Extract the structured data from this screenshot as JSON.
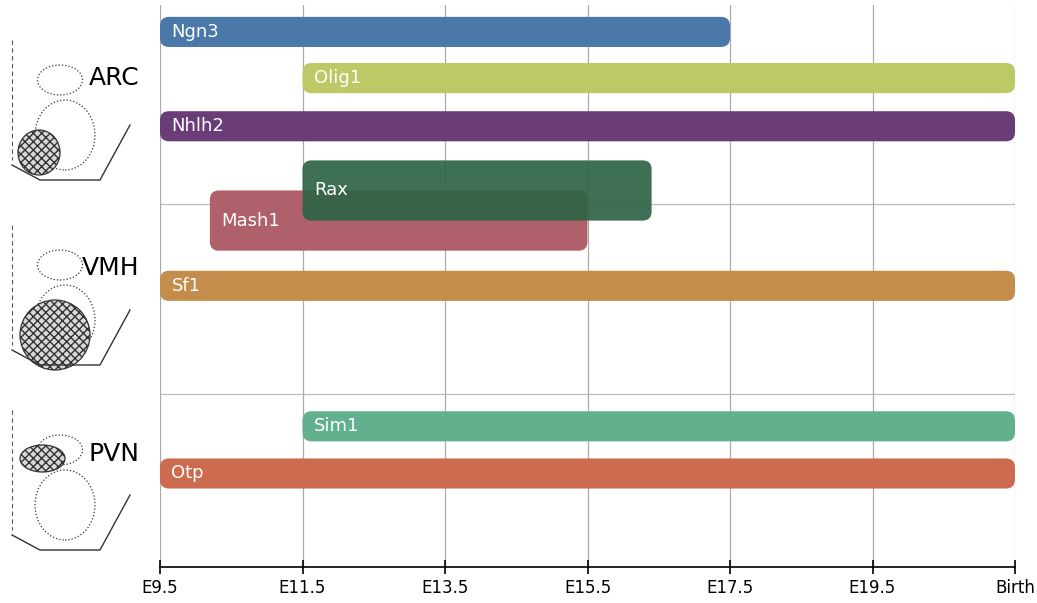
{
  "chart_data": {
    "type": "gantt",
    "groups": [
      "ARC",
      "VMH",
      "PVN"
    ],
    "series": [
      {
        "name": "Ngn3",
        "group": "ARC",
        "start": 9.5,
        "end": 17.5,
        "color": "#4a78a8"
      },
      {
        "name": "Olig1",
        "group": "ARC",
        "start": 11.5,
        "end": 21.5,
        "color": "#bec864"
      },
      {
        "name": "Nhlh2",
        "group": "ARC",
        "start": 9.5,
        "end": 21.5,
        "color": "#6a3d78"
      },
      {
        "name": "Mash1",
        "group": "VMH",
        "start": 10.2,
        "end": 15.5,
        "color": "#b0606a"
      },
      {
        "name": "Rax",
        "group": "ARC",
        "start": 11.5,
        "end": 16.4,
        "color": "#2e6446"
      },
      {
        "name": "Sf1",
        "group": "VMH",
        "start": 9.5,
        "end": 21.5,
        "color": "#c48d4c"
      },
      {
        "name": "Sim1",
        "group": "PVN",
        "start": 11.5,
        "end": 21.5,
        "color": "#62b08e"
      },
      {
        "name": "Otp",
        "group": "PVN",
        "start": 9.5,
        "end": 21.5,
        "color": "#cc6b50"
      }
    ],
    "xlim": [
      9.5,
      21.5
    ],
    "xticks": [
      {
        "value": 9.5,
        "label": "E9.5"
      },
      {
        "value": 11.5,
        "label": "E11.5"
      },
      {
        "value": 13.5,
        "label": "E13.5"
      },
      {
        "value": 15.5,
        "label": "E15.5"
      },
      {
        "value": 17.5,
        "label": "E17.5"
      },
      {
        "value": 19.5,
        "label": "E19.5"
      },
      {
        "value": 21.5,
        "label": "Birth"
      }
    ],
    "grid": true,
    "tick_labels": "x"
  }
}
